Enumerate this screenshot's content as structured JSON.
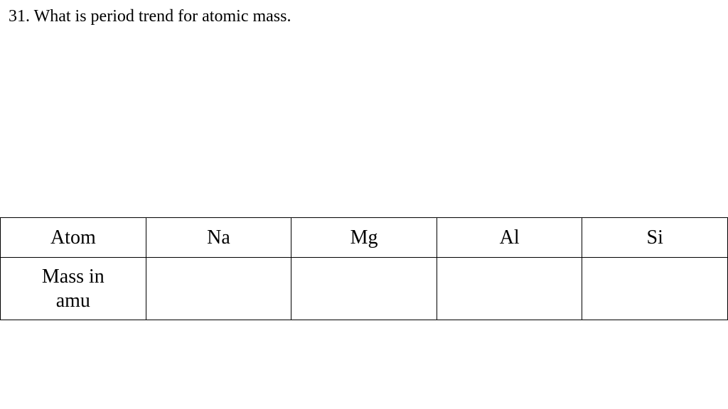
{
  "question": {
    "number": "31.",
    "text": "What is period trend for atomic mass.",
    "full": "31.  What is period trend for atomic mass."
  },
  "table": {
    "type": "table",
    "columns": [
      "Atom",
      "Na",
      "Mg",
      "Al",
      "Si"
    ],
    "rows": [
      [
        "Mass in amu",
        "",
        "",
        "",
        ""
      ]
    ],
    "header_label": "Atom",
    "atoms": [
      "Na",
      "Mg",
      "Al",
      "Si"
    ],
    "row2_label_line1": "Mass in",
    "row2_label_line2": "amu",
    "masses": [
      "",
      "",
      "",
      ""
    ],
    "border_color": "#000000",
    "background_color": "#ffffff",
    "text_color": "#000000",
    "font_family": "Comic Sans MS",
    "header_fontsize": 28,
    "cell_fontsize": 28
  },
  "styling": {
    "question_font": "Times New Roman",
    "question_fontsize": 24,
    "question_color": "#000000",
    "page_background": "#ffffff"
  }
}
